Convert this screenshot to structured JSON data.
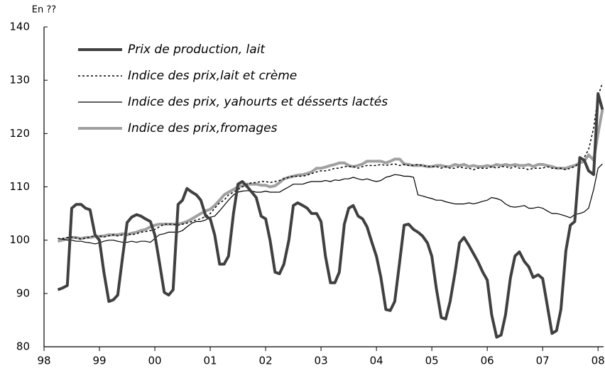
{
  "chart_data": {
    "type": "line",
    "y_label": "En ??",
    "xlim": [
      1998,
      2008.1
    ],
    "ylim": [
      80,
      140
    ],
    "xticks": [
      {
        "value": 1998,
        "label": "98"
      },
      {
        "value": 1999,
        "label": "99"
      },
      {
        "value": 2000,
        "label": "00"
      },
      {
        "value": 2001,
        "label": "01"
      },
      {
        "value": 2002,
        "label": "02"
      },
      {
        "value": 2003,
        "label": "03"
      },
      {
        "value": 2004,
        "label": "04"
      },
      {
        "value": 2005,
        "label": "05"
      },
      {
        "value": 2006,
        "label": "06"
      },
      {
        "value": 2007,
        "label": "07"
      },
      {
        "value": 2008,
        "label": "08"
      }
    ],
    "yticks": [
      80,
      90,
      100,
      110,
      120,
      130,
      140
    ],
    "grid": false,
    "legend": "upper left",
    "x": [
      1998.25,
      1998.33,
      1998.42,
      1998.5,
      1998.58,
      1998.67,
      1998.75,
      1998.83,
      1998.92,
      1999.0,
      1999.08,
      1999.17,
      1999.25,
      1999.33,
      1999.42,
      1999.5,
      1999.58,
      1999.67,
      1999.75,
      1999.83,
      1999.92,
      2000.0,
      2000.08,
      2000.17,
      2000.25,
      2000.33,
      2000.42,
      2000.5,
      2000.58,
      2000.67,
      2000.75,
      2000.83,
      2000.92,
      2001.0,
      2001.08,
      2001.17,
      2001.25,
      2001.33,
      2001.42,
      2001.5,
      2001.58,
      2001.67,
      2001.75,
      2001.83,
      2001.92,
      2002.0,
      2002.08,
      2002.17,
      2002.25,
      2002.33,
      2002.42,
      2002.5,
      2002.58,
      2002.67,
      2002.75,
      2002.83,
      2002.92,
      2003.0,
      2003.08,
      2003.17,
      2003.25,
      2003.33,
      2003.42,
      2003.5,
      2003.58,
      2003.67,
      2003.75,
      2003.83,
      2003.92,
      2004.0,
      2004.08,
      2004.17,
      2004.25,
      2004.33,
      2004.42,
      2004.5,
      2004.58,
      2004.67,
      2004.75,
      2004.83,
      2004.92,
      2005.0,
      2005.08,
      2005.17,
      2005.25,
      2005.33,
      2005.42,
      2005.5,
      2005.58,
      2005.67,
      2005.75,
      2005.83,
      2005.92,
      2006.0,
      2006.08,
      2006.17,
      2006.25,
      2006.33,
      2006.42,
      2006.5,
      2006.58,
      2006.67,
      2006.75,
      2006.83,
      2006.92,
      2007.0,
      2007.08,
      2007.17,
      2007.25,
      2007.33,
      2007.42,
      2007.5,
      2007.58,
      2007.67,
      2007.75,
      2007.83,
      2007.92,
      2008.0,
      2008.08
    ],
    "series": [
      {
        "name": "Prix de production, lait",
        "color": "#404040",
        "line_width": 4,
        "dashed": false,
        "values": [
          90.7,
          91,
          91.5,
          106,
          106.7,
          106.7,
          106,
          105.7,
          101,
          100,
          94,
          88.5,
          88.8,
          89.7,
          97,
          103.3,
          104.3,
          104.8,
          104.5,
          104,
          103.5,
          101,
          96,
          90.2,
          89.7,
          90.7,
          106.7,
          107.5,
          109.7,
          109,
          108.5,
          107.5,
          104.5,
          104,
          101,
          95.5,
          95.5,
          97,
          105,
          110.5,
          111,
          110,
          109,
          108,
          104.5,
          104,
          100,
          94,
          93.7,
          95.5,
          100,
          106.5,
          107,
          106.5,
          106,
          105,
          105,
          103.5,
          97,
          92,
          92,
          94,
          103,
          106,
          106.5,
          104.5,
          104,
          102.5,
          99.5,
          97,
          93,
          87,
          86.8,
          88.5,
          96,
          102.8,
          103,
          102,
          101.5,
          100.8,
          99.5,
          97,
          91,
          85.5,
          85.2,
          88.5,
          94,
          99.5,
          100.5,
          99,
          97.5,
          96,
          94,
          92.5,
          86,
          81.8,
          82.2,
          86,
          93,
          97,
          97.8,
          96,
          95,
          93,
          93.5,
          92.8,
          88,
          82.5,
          83,
          87,
          98,
          102.8,
          103.5,
          115.5,
          115,
          113,
          112.3,
          127.5,
          124.5
        ]
      },
      {
        "name": "Indice des prix,lait et crème",
        "color": "#000000",
        "line_width": 1.5,
        "dashed": true,
        "values": [
          100.3,
          100.3,
          100.5,
          100.6,
          100.4,
          100.2,
          100.4,
          100.6,
          100.8,
          100.8,
          100.6,
          100.8,
          101,
          100.8,
          101,
          101.2,
          101,
          101.2,
          101.5,
          101.6,
          101.8,
          102,
          102.5,
          103,
          103,
          103,
          102.8,
          103,
          103.2,
          103.5,
          103.8,
          104,
          104.5,
          105,
          106,
          107,
          107.5,
          108.5,
          109,
          109.5,
          110,
          110.5,
          110.8,
          110.8,
          111,
          111,
          110.8,
          111,
          111.2,
          111.5,
          111.8,
          112,
          112,
          112,
          112.2,
          112.5,
          112.8,
          113,
          113,
          113.2,
          113.5,
          113.5,
          113.8,
          113.8,
          113.8,
          113.5,
          113.8,
          114,
          114,
          114,
          114.2,
          114,
          114.2,
          114.3,
          114,
          114.2,
          114,
          114,
          114.2,
          114,
          113.8,
          113.8,
          113.8,
          113.5,
          113.8,
          113.5,
          113.5,
          113.8,
          113.5,
          113.5,
          113.2,
          113.5,
          113.5,
          113.5,
          113.8,
          113.5,
          113.8,
          113.8,
          113.5,
          113.8,
          113.5,
          113.5,
          113.2,
          113.5,
          113.5,
          113.5,
          113.8,
          113.5,
          113.5,
          113.5,
          113.2,
          113.5,
          113.8,
          114.5,
          115.5,
          117,
          121,
          127,
          129.5
        ]
      },
      {
        "name": "Indice des prix, yahourts et désserts lactés",
        "color": "#000000",
        "line_width": 1.2,
        "dashed": false,
        "values": [
          100.3,
          100.2,
          100,
          100,
          99.8,
          99.8,
          99.6,
          99.5,
          99.3,
          99.5,
          99.8,
          100,
          100,
          99.8,
          99.6,
          99.6,
          99.8,
          99.6,
          99.8,
          99.8,
          99.6,
          100.3,
          101,
          101.2,
          101.5,
          101.5,
          101.5,
          101.8,
          102.5,
          103.2,
          103.5,
          103.5,
          103.8,
          104.3,
          104.5,
          105.5,
          106.5,
          107.5,
          108.5,
          109,
          109.2,
          109.3,
          109.2,
          109,
          109,
          109.2,
          109,
          109,
          109,
          109.5,
          110,
          110.5,
          110.5,
          110.5,
          110.8,
          111,
          111,
          111,
          111.2,
          111,
          111.3,
          111.2,
          111.5,
          111.5,
          111.8,
          111.5,
          111.3,
          111.5,
          111.2,
          111,
          111.2,
          111.8,
          112,
          112.3,
          112.2,
          112,
          112,
          111.8,
          108.5,
          108.3,
          108,
          107.8,
          107.5,
          107.5,
          107.2,
          107,
          106.8,
          106.8,
          106.8,
          107,
          106.8,
          107,
          107.3,
          107.5,
          108,
          107.8,
          107.5,
          106.8,
          106.3,
          106.2,
          106.3,
          106.5,
          106,
          106,
          106.2,
          106,
          105.5,
          105,
          105,
          104.8,
          104.5,
          104.2,
          104.8,
          105,
          105.3,
          106,
          109.5,
          113.5,
          114.3
        ]
      },
      {
        "name": "Indice des prix,fromages",
        "color": "#a0a0a0",
        "line_width": 4,
        "dashed": false,
        "values": [
          99.8,
          100,
          100.3,
          100.5,
          100.5,
          100.3,
          100.5,
          100.5,
          100.7,
          100.7,
          100.8,
          101,
          101,
          101,
          101.2,
          101,
          101.3,
          101.5,
          101.8,
          102,
          102.5,
          102.8,
          103,
          103,
          103,
          103,
          103,
          103.2,
          103.5,
          104,
          104.5,
          105,
          105.5,
          105.8,
          106.5,
          107.5,
          108.5,
          109,
          109.5,
          110,
          110.2,
          110.5,
          110.5,
          110.5,
          110.3,
          110.3,
          110,
          110.2,
          110.8,
          111.5,
          111.8,
          112,
          112.2,
          112.3,
          112.5,
          112.8,
          113.5,
          113.5,
          113.7,
          114,
          114.2,
          114.5,
          114.5,
          114,
          113.8,
          114,
          114.3,
          114.8,
          114.8,
          114.8,
          114.8,
          114.5,
          114.8,
          115.2,
          115.2,
          114.3,
          114.2,
          114,
          114,
          114,
          113.8,
          113.8,
          114,
          114,
          113.8,
          113.8,
          114.2,
          114,
          114.2,
          113.8,
          114,
          113.8,
          113.8,
          114,
          113.8,
          114.2,
          114,
          114.2,
          114,
          114.2,
          114,
          114,
          114.2,
          113.8,
          114.2,
          114.2,
          114,
          113.8,
          113.5,
          113.5,
          113.5,
          113.8,
          114,
          114.5,
          114.8,
          116,
          115,
          120,
          124.5
        ]
      }
    ]
  }
}
